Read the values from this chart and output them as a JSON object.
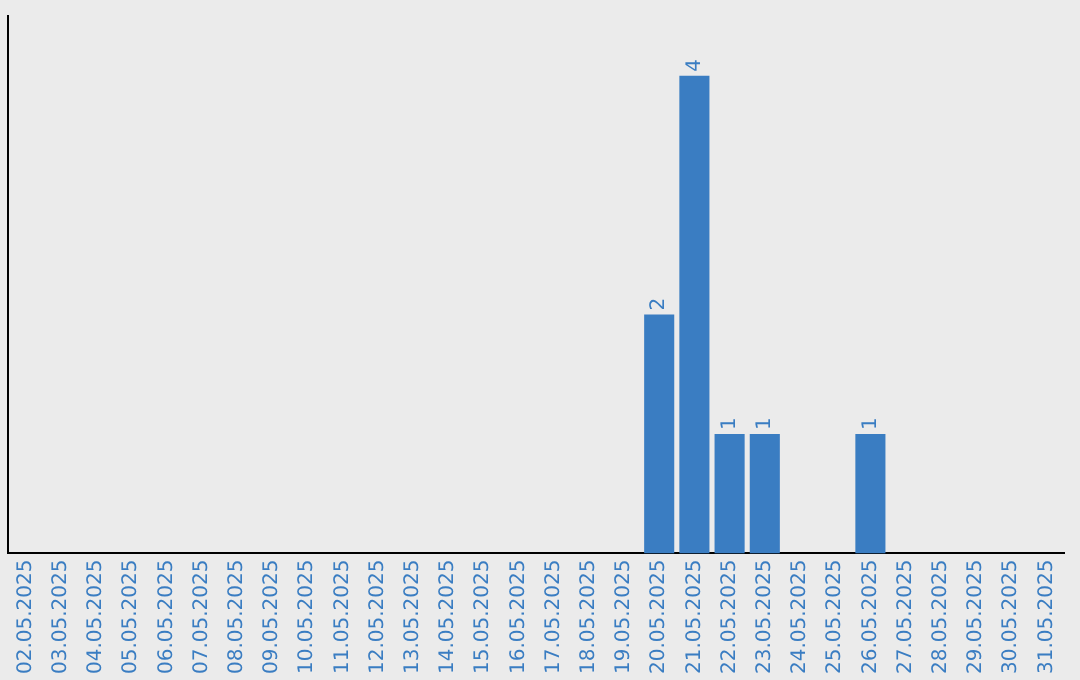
{
  "chart_data": {
    "type": "bar",
    "categories": [
      "02.05.2025",
      "03.05.2025",
      "04.05.2025",
      "05.05.2025",
      "06.05.2025",
      "07.05.2025",
      "08.05.2025",
      "09.05.2025",
      "10.05.2025",
      "11.05.2025",
      "12.05.2025",
      "13.05.2025",
      "14.05.2025",
      "15.05.2025",
      "16.05.2025",
      "17.05.2025",
      "18.05.2025",
      "19.05.2025",
      "20.05.2025",
      "21.05.2025",
      "22.05.2025",
      "23.05.2025",
      "24.05.2025",
      "25.05.2025",
      "26.05.2025",
      "27.05.2025",
      "28.05.2025",
      "29.05.2025",
      "30.05.2025",
      "31.05.2025"
    ],
    "values": [
      null,
      null,
      null,
      null,
      null,
      null,
      null,
      null,
      null,
      null,
      null,
      null,
      null,
      null,
      null,
      null,
      null,
      null,
      2,
      4,
      1,
      1,
      null,
      null,
      1,
      null,
      null,
      null,
      null,
      null
    ],
    "data_labels": true,
    "color": "#3a7dc2",
    "grid": false,
    "legend": false
  }
}
